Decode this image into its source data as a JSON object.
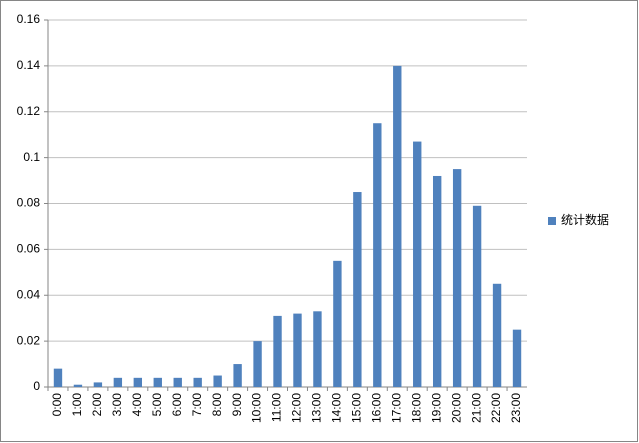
{
  "chart_data": {
    "type": "bar",
    "categories": [
      "0:00",
      "1:00",
      "2:00",
      "3:00",
      "4:00",
      "5:00",
      "6:00",
      "7:00",
      "8:00",
      "9:00",
      "10:00",
      "11:00",
      "12:00",
      "13:00",
      "14:00",
      "15:00",
      "16:00",
      "17:00",
      "18:00",
      "19:00",
      "20:00",
      "21:00",
      "22:00",
      "23:00"
    ],
    "series": [
      {
        "name": "统计数据",
        "color": "#4f81bd",
        "values": [
          0.008,
          0.001,
          0.002,
          0.004,
          0.004,
          0.004,
          0.004,
          0.004,
          0.005,
          0.01,
          0.02,
          0.031,
          0.032,
          0.033,
          0.055,
          0.085,
          0.115,
          0.14,
          0.107,
          0.092,
          0.095,
          0.079,
          0.045,
          0.025
        ]
      }
    ],
    "ylim": [
      0,
      0.16
    ],
    "yticks": [
      0,
      0.02,
      0.04,
      0.06,
      0.08,
      0.1,
      0.12,
      0.14,
      0.16
    ],
    "grid": true,
    "legend": "right"
  }
}
